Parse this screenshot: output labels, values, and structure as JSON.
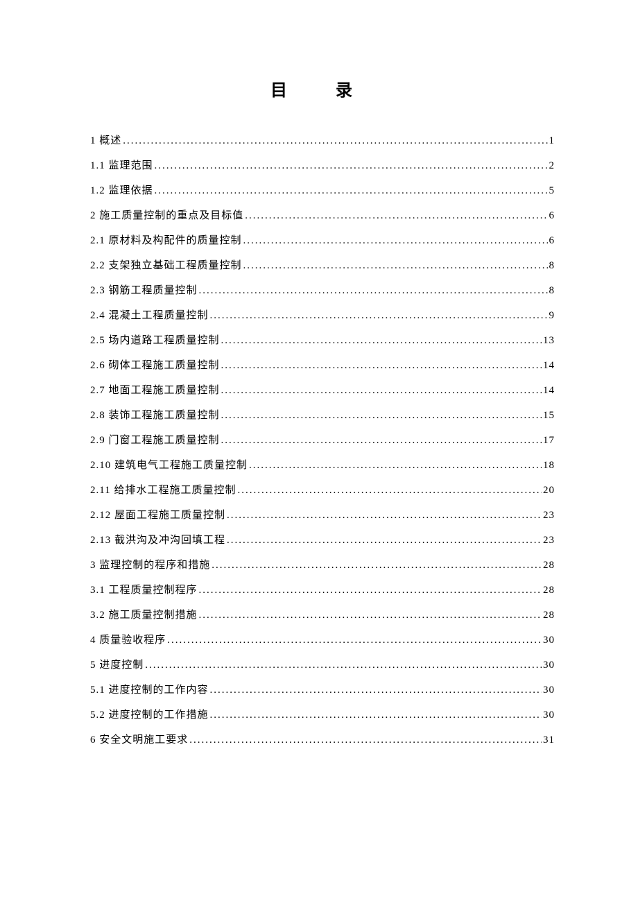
{
  "title": "目 录",
  "toc": [
    {
      "label": "1 概述",
      "page": "1"
    },
    {
      "label": "1.1 监理范围",
      "page": "2"
    },
    {
      "label": "1.2 监理依据",
      "page": "5"
    },
    {
      "label": "2 施工质量控制的重点及目标值",
      "page": "6"
    },
    {
      "label": "2.1 原材料及构配件的质量控制",
      "page": "6"
    },
    {
      "label": "2.2 支架独立基础工程质量控制",
      "page": "8"
    },
    {
      "label": "2.3 钢筋工程质量控制",
      "page": "8"
    },
    {
      "label": "2.4 混凝土工程质量控制",
      "page": "9"
    },
    {
      "label": "2.5 场内道路工程质量控制",
      "page": "13"
    },
    {
      "label": "2.6 砌体工程施工质量控制",
      "page": "14"
    },
    {
      "label": "2.7 地面工程施工质量控制",
      "page": "14"
    },
    {
      "label": "2.8 装饰工程施工质量控制",
      "page": "15"
    },
    {
      "label": "2.9 门窗工程施工质量控制",
      "page": "17"
    },
    {
      "label": "2.10 建筑电气工程施工质量控制",
      "page": "18"
    },
    {
      "label": "2.11 给排水工程施工质量控制",
      "page": "20"
    },
    {
      "label": "2.12 屋面工程施工质量控制",
      "page": "23"
    },
    {
      "label": "2.13 截洪沟及冲沟回填工程",
      "page": "23"
    },
    {
      "label": "3 监理控制的程序和措施",
      "page": "28"
    },
    {
      "label": "3.1 工程质量控制程序",
      "page": "28"
    },
    {
      "label": "3.2 施工质量控制措施",
      "page": "28"
    },
    {
      "label": "4 质量验收程序",
      "page": "30"
    },
    {
      "label": "5 进度控制",
      "page": "30"
    },
    {
      "label": "5.1 进度控制的工作内容",
      "page": "30"
    },
    {
      "label": "5.2  进度控制的工作措施",
      "page": "30"
    },
    {
      "label": "6  安全文明施工要求",
      "page": "31"
    }
  ],
  "colors": {
    "text": "#000000",
    "background": "#ffffff"
  },
  "typography": {
    "title_fontsize": 24,
    "body_fontsize": 15,
    "line_height": 2.4
  }
}
